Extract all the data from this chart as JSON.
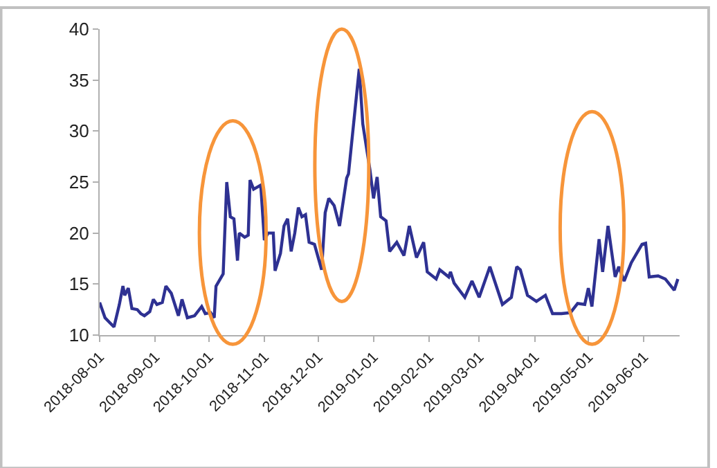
{
  "chart_data": {
    "type": "line",
    "x": [
      "2018-08-01",
      "2018-08-04",
      "2018-08-09",
      "2018-08-12",
      "2018-08-14",
      "2018-08-15",
      "2018-08-17",
      "2018-08-19",
      "2018-08-22",
      "2018-08-24",
      "2018-08-26",
      "2018-08-29",
      "2018-08-31",
      "2018-09-02",
      "2018-09-05",
      "2018-09-07",
      "2018-09-10",
      "2018-09-14",
      "2018-09-16",
      "2018-09-19",
      "2018-09-23",
      "2018-09-27",
      "2018-09-29",
      "2018-10-02",
      "2018-10-04",
      "2018-10-05",
      "2018-10-09",
      "2018-10-11",
      "2018-10-13",
      "2018-10-15",
      "2018-10-17",
      "2018-10-18",
      "2018-10-21",
      "2018-10-23",
      "2018-10-24",
      "2018-10-26",
      "2018-10-30",
      "2018-11-01",
      "2018-11-03",
      "2018-11-06",
      "2018-11-07",
      "2018-11-10",
      "2018-11-12",
      "2018-11-14",
      "2018-11-16",
      "2018-11-18",
      "2018-11-20",
      "2018-11-22",
      "2018-11-24",
      "2018-11-26",
      "2018-11-29",
      "2018-12-03",
      "2018-12-05",
      "2018-12-07",
      "2018-12-10",
      "2018-12-13",
      "2018-12-17",
      "2018-12-18",
      "2018-12-24",
      "2018-12-26",
      "2018-12-30",
      "2019-01-01",
      "2019-01-03",
      "2019-01-05",
      "2019-01-08",
      "2019-01-10",
      "2019-01-14",
      "2019-01-18",
      "2019-01-21",
      "2019-01-25",
      "2019-01-29",
      "2019-01-31",
      "2019-02-05",
      "2019-02-07",
      "2019-02-12",
      "2019-02-13",
      "2019-02-15",
      "2019-02-21",
      "2019-02-25",
      "2019-03-01",
      "2019-03-07",
      "2019-03-14",
      "2019-03-19",
      "2019-03-22",
      "2019-03-24",
      "2019-03-28",
      "2019-04-02",
      "2019-04-07",
      "2019-04-11",
      "2019-04-16",
      "2019-04-21",
      "2019-04-25",
      "2019-04-29",
      "2019-05-01",
      "2019-05-03",
      "2019-05-07",
      "2019-05-09",
      "2019-05-12",
      "2019-05-16",
      "2019-05-18",
      "2019-05-21",
      "2019-05-25",
      "2019-05-28",
      "2019-05-31",
      "2019-06-02",
      "2019-06-04",
      "2019-06-09",
      "2019-06-13",
      "2019-06-18",
      "2019-06-20"
    ],
    "series": [
      {
        "color": "#2e3192",
        "values": [
          13.2,
          11.7,
          10.8,
          13.0,
          14.8,
          13.9,
          14.6,
          12.6,
          12.5,
          12.1,
          11.9,
          12.3,
          13.5,
          13.0,
          13.2,
          14.8,
          14.1,
          11.9,
          13.5,
          11.7,
          11.9,
          12.8,
          12.1,
          12.2,
          11.7,
          14.8,
          16.0,
          25.0,
          21.6,
          21.4,
          17.3,
          20.0,
          19.6,
          19.8,
          25.2,
          24.3,
          24.7,
          19.3,
          20.0,
          20.0,
          16.3,
          18.0,
          20.7,
          21.4,
          18.2,
          20.0,
          22.5,
          21.6,
          21.8,
          19.1,
          18.9,
          16.4,
          22.0,
          23.4,
          22.7,
          20.7,
          25.4,
          25.8,
          36.1,
          30.7,
          26.2,
          23.4,
          25.5,
          21.6,
          21.2,
          18.2,
          19.1,
          17.8,
          20.7,
          17.6,
          19.1,
          16.2,
          15.5,
          16.4,
          15.7,
          16.2,
          15.1,
          13.7,
          15.3,
          13.7,
          16.7,
          13.0,
          13.7,
          16.7,
          16.4,
          13.9,
          13.3,
          13.9,
          12.1,
          12.1,
          12.2,
          13.1,
          13.0,
          14.6,
          12.8,
          19.4,
          16.2,
          20.7,
          15.7,
          16.7,
          15.3,
          17.1,
          18.0,
          18.9,
          19.0,
          15.7,
          15.8,
          15.5,
          14.4,
          15.5
        ]
      }
    ],
    "xlim": [
      "2018-08-01",
      "2019-06-21"
    ],
    "xticks": [
      {
        "value": "2018-08-01",
        "label": "2018-08-01"
      },
      {
        "value": "2018-09-01",
        "label": "2018-09-01"
      },
      {
        "value": "2018-10-01",
        "label": "2018-10-01"
      },
      {
        "value": "2018-11-01",
        "label": "2018-11-01"
      },
      {
        "value": "2018-12-01",
        "label": "2018-12-01"
      },
      {
        "value": "2019-01-01",
        "label": "2019-01-01"
      },
      {
        "value": "2019-02-01",
        "label": "2019-02-01"
      },
      {
        "value": "2019-03-01",
        "label": "2019-03-01"
      },
      {
        "value": "2019-04-01",
        "label": "2019-04-01"
      },
      {
        "value": "2019-05-01",
        "label": "2019-05-01"
      },
      {
        "value": "2019-06-01",
        "label": "2019-06-01"
      }
    ],
    "ylim": [
      10,
      40
    ],
    "yticks": [
      10,
      15,
      20,
      25,
      30,
      35,
      40
    ],
    "marker": "none",
    "line_style": "solid"
  }
}
